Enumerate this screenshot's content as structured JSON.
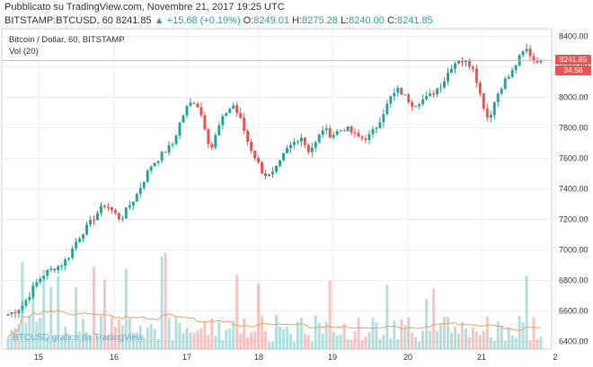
{
  "header": {
    "published": "Pubblicato su TradingView.com, Novembre 21, 2017 19:25 UTC",
    "symbol": "BITSTAMP:BTCUSD, 60",
    "last": "8241.85",
    "change": "▲ +15.68 (+0.19%)",
    "o_label": "O:",
    "o_value": "8249.01",
    "h_label": "H:",
    "h_value": "8275.28",
    "l_label": "L:",
    "l_value": "8240.00",
    "c_label": "C:",
    "c_value": "8241.85"
  },
  "pane": {
    "title": "Bitcoin / Dollar, 60, BITSTAMP",
    "volume_label": "Vol (20)"
  },
  "price_tags": {
    "last_price": "8241.85",
    "countdown": "34:58"
  },
  "watermark": "BTCUSD grafico da TradingView",
  "colors": {
    "up": "#26a69a",
    "down": "#ef5350",
    "volume_ma": "#f5a05a",
    "grid": "#eeeeee",
    "last_line": "#f8a5a5"
  },
  "chart_data": {
    "type": "candlestick",
    "y_ticks": [
      "8400.00",
      "8200.00",
      "8000.00",
      "7800.00",
      "7600.00",
      "7400.00",
      "7200.00",
      "7000.00",
      "6800.00",
      "6600.00",
      "6400.00"
    ],
    "ylim": [
      6350,
      8450
    ],
    "x_ticks": [
      "15",
      "16",
      "17",
      "18",
      "19",
      "20",
      "21",
      "2"
    ],
    "close_path": [
      6580,
      6600,
      6640,
      6720,
      6800,
      6850,
      6880,
      6900,
      6950,
      7050,
      7120,
      7180,
      7250,
      7300,
      7250,
      7200,
      7280,
      7350,
      7450,
      7550,
      7600,
      7650,
      7700,
      7850,
      7950,
      7980,
      7850,
      7650,
      7800,
      7900,
      7950,
      7850,
      7700,
      7600,
      7500,
      7480,
      7550,
      7650,
      7700,
      7750,
      7650,
      7700,
      7800,
      7750,
      7780,
      7800,
      7760,
      7730,
      7740,
      7800,
      7900,
      8000,
      8050,
      8000,
      7950,
      7980,
      8000,
      8050,
      8100,
      8200,
      8250,
      8230,
      8200,
      8000,
      7850,
      8000,
      8100,
      8150,
      8250,
      8320,
      8250,
      8242
    ],
    "volume_ma_label": "Vol (20)"
  }
}
